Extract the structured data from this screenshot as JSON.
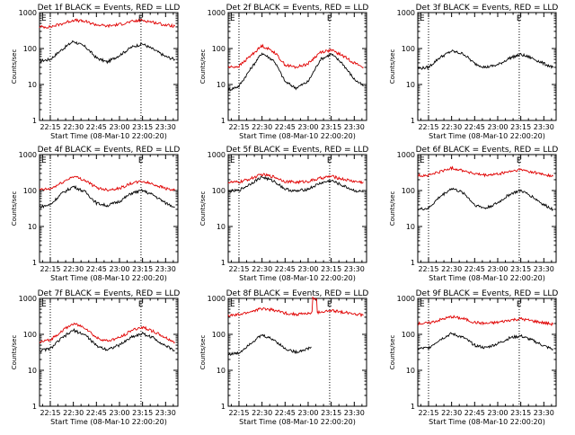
{
  "figure": {
    "layout": "3x3 grid of count-rate plots",
    "colors": {
      "events": "#000000",
      "lld": "#e00000",
      "axes": "#000000",
      "background": "#ffffff"
    }
  },
  "chart_data": [
    {
      "type": "line",
      "title": "Det 1f BLACK = Events, RED = LLD",
      "xlabel": "Start Time (08-Mar-10 22:00:20)",
      "ylabel": "Counts/sec",
      "yscale": "log",
      "ylim": [
        1,
        1000
      ],
      "yticks": [
        "1",
        "10",
        "100",
        "1000"
      ],
      "xlim": [
        "22:08",
        "23:38"
      ],
      "xticks": [
        "22:15",
        "22:30",
        "22:45",
        "23:00",
        "23:15",
        "23:30"
      ],
      "vlines": [
        "22:15",
        "23:14"
      ],
      "marks": [
        "E",
        "E"
      ],
      "series": [
        {
          "name": "Events",
          "color": "#000000",
          "x": [
            "22:08",
            "22:15",
            "22:22",
            "22:30",
            "22:38",
            "22:45",
            "22:52",
            "23:00",
            "23:08",
            "23:15",
            "23:22",
            "23:30",
            "23:36"
          ],
          "values": [
            45,
            50,
            90,
            160,
            110,
            55,
            42,
            65,
            110,
            135,
            95,
            60,
            50
          ]
        },
        {
          "name": "LLD",
          "color": "#e00000",
          "x": [
            "22:08",
            "22:15",
            "22:22",
            "22:30",
            "22:38",
            "22:45",
            "22:52",
            "23:00",
            "23:08",
            "23:15",
            "23:22",
            "23:30",
            "23:36"
          ],
          "values": [
            400,
            400,
            480,
            620,
            560,
            460,
            420,
            470,
            560,
            610,
            540,
            450,
            420
          ]
        }
      ]
    },
    {
      "type": "line",
      "title": "Det 2f BLACK = Events, RED = LLD",
      "xlabel": "Start Time (08-Mar-10 22:00:20)",
      "ylabel": "Counts/sec",
      "yscale": "log",
      "ylim": [
        1,
        1000
      ],
      "yticks": [
        "1",
        "10",
        "100",
        "1000"
      ],
      "xlim": [
        "22:08",
        "23:38"
      ],
      "xticks": [
        "22:15",
        "22:30",
        "22:45",
        "23:00",
        "23:15",
        "23:30"
      ],
      "vlines": [
        "22:15",
        "23:14"
      ],
      "marks": [
        "E",
        "E"
      ],
      "series": [
        {
          "name": "Events",
          "color": "#000000",
          "x": [
            "22:08",
            "22:15",
            "22:22",
            "22:30",
            "22:38",
            "22:45",
            "22:52",
            "23:00",
            "23:08",
            "23:15",
            "23:22",
            "23:30",
            "23:36"
          ],
          "values": [
            7,
            9,
            25,
            75,
            45,
            12,
            8,
            12,
            50,
            70,
            40,
            14,
            9
          ]
        },
        {
          "name": "LLD",
          "color": "#e00000",
          "x": [
            "22:08",
            "22:15",
            "22:22",
            "22:30",
            "22:38",
            "22:45",
            "22:52",
            "23:00",
            "23:08",
            "23:15",
            "23:22",
            "23:30",
            "23:36"
          ],
          "values": [
            30,
            32,
            60,
            120,
            80,
            35,
            30,
            38,
            80,
            90,
            65,
            40,
            30
          ]
        }
      ]
    },
    {
      "type": "line",
      "title": "Det 3f BLACK = Events, RED = LLD",
      "xlabel": "Start Time (08-Mar-10 22:00:20)",
      "ylabel": "Counts/sec",
      "yscale": "log",
      "ylim": [
        1,
        1000
      ],
      "yticks": [
        "1",
        "10",
        "100",
        "1000"
      ],
      "xlim": [
        "22:08",
        "23:38"
      ],
      "xticks": [
        "22:15",
        "22:30",
        "22:45",
        "23:00",
        "23:15",
        "23:30"
      ],
      "vlines": [
        "22:15",
        "23:14"
      ],
      "marks": [
        "E",
        "E"
      ],
      "series": [
        {
          "name": "Events",
          "color": "#000000",
          "x": [
            "22:08",
            "22:15",
            "22:22",
            "22:30",
            "22:38",
            "22:45",
            "22:52",
            "23:00",
            "23:08",
            "23:15",
            "23:22",
            "23:30",
            "23:36"
          ],
          "values": [
            28,
            30,
            55,
            85,
            70,
            38,
            30,
            35,
            55,
            68,
            55,
            38,
            30
          ]
        }
      ]
    },
    {
      "type": "line",
      "title": "Det 4f BLACK = Events, RED = LLD",
      "xlabel": "Start Time (08-Mar-10 22:00:20)",
      "ylabel": "Counts/sec",
      "yscale": "log",
      "ylim": [
        1,
        1000
      ],
      "yticks": [
        "1",
        "10",
        "100",
        "1000"
      ],
      "xlim": [
        "22:08",
        "23:38"
      ],
      "xticks": [
        "22:15",
        "22:30",
        "22:45",
        "23:00",
        "23:15",
        "23:30"
      ],
      "vlines": [
        "22:15",
        "23:14"
      ],
      "marks": [
        "E",
        "E"
      ],
      "series": [
        {
          "name": "Events",
          "color": "#000000",
          "x": [
            "22:08",
            "22:15",
            "22:22",
            "22:30",
            "22:38",
            "22:45",
            "22:52",
            "23:00",
            "23:08",
            "23:15",
            "23:22",
            "23:30",
            "23:36"
          ],
          "values": [
            35,
            40,
            80,
            130,
            90,
            45,
            38,
            50,
            85,
            100,
            75,
            45,
            35
          ]
        },
        {
          "name": "LLD",
          "color": "#e00000",
          "x": [
            "22:08",
            "22:15",
            "22:22",
            "22:30",
            "22:38",
            "22:45",
            "22:52",
            "23:00",
            "23:08",
            "23:15",
            "23:22",
            "23:30",
            "23:36"
          ],
          "values": [
            105,
            110,
            160,
            250,
            190,
            120,
            105,
            115,
            160,
            180,
            150,
            115,
            100
          ]
        }
      ]
    },
    {
      "type": "line",
      "title": "Det 5f BLACK = Events, RED = LLD",
      "xlabel": "Start Time (08-Mar-10 22:00:20)",
      "ylabel": "Counts/sec",
      "yscale": "log",
      "ylim": [
        1,
        1000
      ],
      "yticks": [
        "1",
        "10",
        "100",
        "1000"
      ],
      "xlim": [
        "22:08",
        "23:38"
      ],
      "xticks": [
        "22:15",
        "22:30",
        "22:45",
        "23:00",
        "23:15",
        "23:30"
      ],
      "vlines": [
        "22:15",
        "23:14"
      ],
      "marks": [
        "E",
        "E"
      ],
      "series": [
        {
          "name": "Events",
          "color": "#000000",
          "x": [
            "22:08",
            "22:15",
            "22:22",
            "22:30",
            "22:38",
            "22:45",
            "22:52",
            "23:00",
            "23:08",
            "23:15",
            "23:22",
            "23:30",
            "23:36"
          ],
          "values": [
            95,
            100,
            150,
            240,
            180,
            110,
            95,
            110,
            160,
            190,
            140,
            100,
            90
          ]
        },
        {
          "name": "LLD",
          "color": "#e00000",
          "x": [
            "22:08",
            "22:15",
            "22:22",
            "22:30",
            "22:38",
            "22:45",
            "22:52",
            "23:00",
            "23:08",
            "23:15",
            "23:22",
            "23:30",
            "23:36"
          ],
          "values": [
            170,
            170,
            210,
            280,
            240,
            180,
            170,
            180,
            220,
            250,
            210,
            180,
            170
          ]
        }
      ]
    },
    {
      "type": "line",
      "title": "Det 6f BLACK = Events, RED = LLD",
      "xlabel": "Start Time (08-Mar-10 22:00:20)",
      "ylabel": "Counts/sec",
      "yscale": "log",
      "ylim": [
        1,
        1000
      ],
      "yticks": [
        "1",
        "10",
        "100",
        "1000"
      ],
      "xlim": [
        "22:08",
        "23:38"
      ],
      "xticks": [
        "22:15",
        "22:30",
        "22:45",
        "23:00",
        "23:15",
        "23:30"
      ],
      "vlines": [
        "22:15",
        "23:14"
      ],
      "marks": [
        "E",
        "E"
      ],
      "series": [
        {
          "name": "Events",
          "color": "#000000",
          "x": [
            "22:08",
            "22:15",
            "22:22",
            "22:30",
            "22:38",
            "22:45",
            "22:52",
            "23:00",
            "23:08",
            "23:15",
            "23:22",
            "23:30",
            "23:36"
          ],
          "values": [
            30,
            32,
            65,
            115,
            85,
            40,
            32,
            45,
            80,
            100,
            70,
            40,
            30
          ]
        },
        {
          "name": "LLD",
          "color": "#e00000",
          "x": [
            "22:08",
            "22:15",
            "22:22",
            "22:30",
            "22:38",
            "22:45",
            "22:52",
            "23:00",
            "23:08",
            "23:15",
            "23:22",
            "23:30",
            "23:36"
          ],
          "values": [
            260,
            265,
            330,
            420,
            360,
            290,
            265,
            285,
            340,
            380,
            330,
            280,
            250
          ]
        }
      ]
    },
    {
      "type": "line",
      "title": "Det 7f BLACK = Events, RED = LLD",
      "xlabel": "Start Time (08-Mar-10 22:00:20)",
      "ylabel": "Counts/sec",
      "yscale": "log",
      "ylim": [
        1,
        1000
      ],
      "yticks": [
        "1",
        "10",
        "100",
        "1000"
      ],
      "xlim": [
        "22:08",
        "23:38"
      ],
      "xticks": [
        "22:15",
        "22:30",
        "22:45",
        "23:00",
        "23:15",
        "23:30"
      ],
      "vlines": [
        "22:15",
        "23:14"
      ],
      "marks": [
        "E",
        "E"
      ],
      "series": [
        {
          "name": "Events",
          "color": "#000000",
          "x": [
            "22:08",
            "22:15",
            "22:22",
            "22:30",
            "22:38",
            "22:45",
            "22:52",
            "23:00",
            "23:08",
            "23:15",
            "23:22",
            "23:30",
            "23:36"
          ],
          "values": [
            35,
            40,
            75,
            130,
            95,
            48,
            38,
            50,
            85,
            105,
            80,
            48,
            35
          ]
        },
        {
          "name": "LLD",
          "color": "#e00000",
          "x": [
            "22:08",
            "22:15",
            "22:22",
            "22:30",
            "22:38",
            "22:45",
            "22:52",
            "23:00",
            "23:08",
            "23:15",
            "23:22",
            "23:30",
            "23:36"
          ],
          "values": [
            60,
            70,
            120,
            200,
            150,
            80,
            65,
            80,
            130,
            160,
            120,
            80,
            60
          ]
        }
      ]
    },
    {
      "type": "line",
      "title": "Det 8f BLACK = Events, RED = LLD",
      "xlabel": "Start Time (08-Mar-10 22:00:20)",
      "ylabel": "Counts/sec",
      "yscale": "log",
      "ylim": [
        1,
        1000
      ],
      "yticks": [
        "1",
        "10",
        "100",
        "1000"
      ],
      "xlim": [
        "22:08",
        "23:38"
      ],
      "xticks": [
        "22:15",
        "22:30",
        "22:45",
        "23:00",
        "23:15",
        "23:30"
      ],
      "vlines": [
        "22:15",
        "23:14"
      ],
      "marks": [
        "E",
        "E"
      ],
      "series": [
        {
          "name": "Events",
          "color": "#000000",
          "x": [
            "22:08",
            "22:15",
            "22:22",
            "22:30",
            "22:38",
            "22:45",
            "22:52",
            "23:00",
            "23:02"
          ],
          "values": [
            28,
            30,
            55,
            95,
            70,
            40,
            32,
            40,
            45
          ]
        },
        {
          "name": "LLD",
          "color": "#e00000",
          "x": [
            "22:08",
            "22:15",
            "22:22",
            "22:30",
            "22:38",
            "22:45",
            "22:52",
            "23:00",
            "23:03",
            "23:03",
            "23:06",
            "23:06",
            "23:08",
            "23:15",
            "23:22",
            "23:30",
            "23:36"
          ],
          "values": [
            330,
            350,
            420,
            520,
            470,
            390,
            360,
            380,
            400,
            1000,
            1000,
            400,
            420,
            450,
            420,
            380,
            340
          ]
        }
      ]
    },
    {
      "type": "line",
      "title": "Det 9f BLACK = Events, RED = LLD",
      "xlabel": "Start Time (08-Mar-10 22:00:20)",
      "ylabel": "Counts/sec",
      "yscale": "log",
      "ylim": [
        1,
        1000
      ],
      "yticks": [
        "1",
        "10",
        "100",
        "1000"
      ],
      "xlim": [
        "22:08",
        "23:38"
      ],
      "xticks": [
        "22:15",
        "22:30",
        "22:45",
        "23:00",
        "23:15",
        "23:30"
      ],
      "vlines": [
        "22:15",
        "23:14"
      ],
      "marks": [
        "E",
        "E"
      ],
      "series": [
        {
          "name": "Events",
          "color": "#000000",
          "x": [
            "22:08",
            "22:15",
            "22:22",
            "22:30",
            "22:38",
            "22:45",
            "22:52",
            "23:00",
            "23:08",
            "23:15",
            "23:22",
            "23:30",
            "23:36"
          ],
          "values": [
            40,
            42,
            70,
            105,
            80,
            50,
            42,
            55,
            80,
            90,
            70,
            48,
            38
          ]
        },
        {
          "name": "LLD",
          "color": "#e00000",
          "x": [
            "22:08",
            "22:15",
            "22:22",
            "22:30",
            "22:38",
            "22:45",
            "22:52",
            "23:00",
            "23:08",
            "23:15",
            "23:22",
            "23:30",
            "23:36"
          ],
          "values": [
            200,
            205,
            250,
            310,
            270,
            215,
            200,
            215,
            250,
            270,
            240,
            210,
            190
          ]
        }
      ]
    }
  ]
}
